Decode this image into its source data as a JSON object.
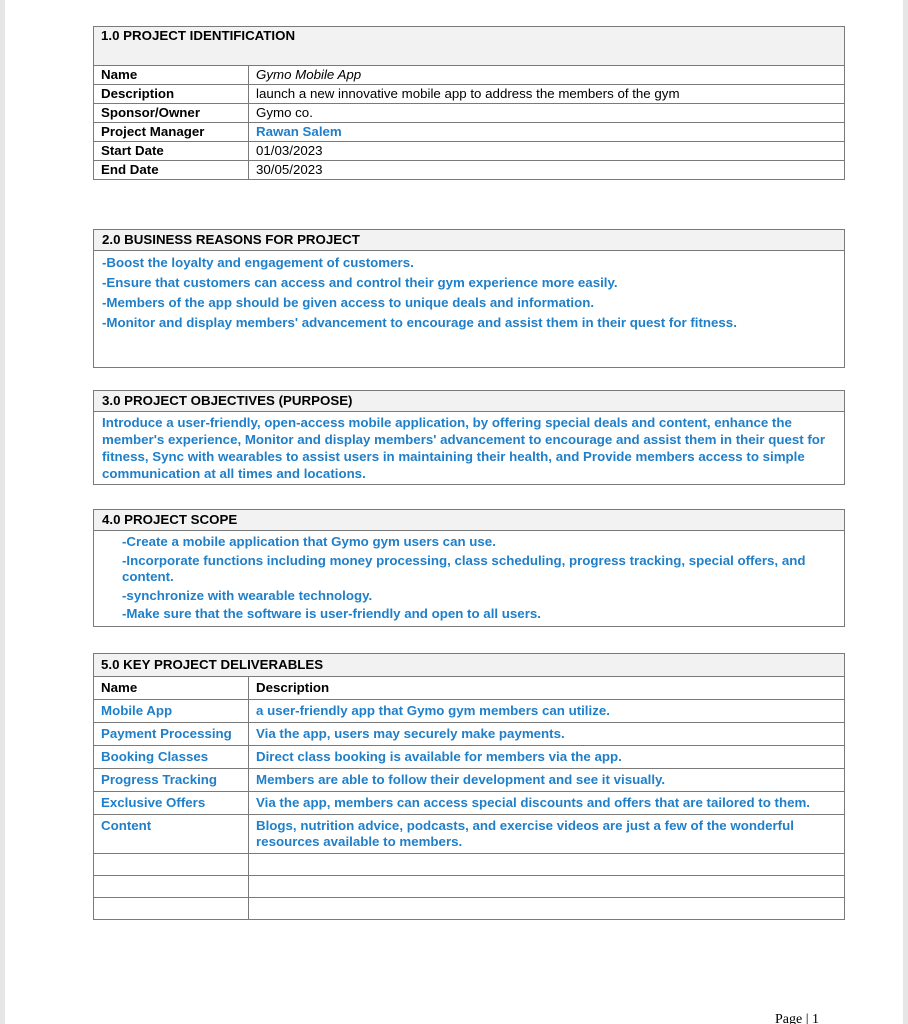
{
  "s1": {
    "title": "1.0 PROJECT IDENTIFICATION",
    "rows": [
      {
        "label": "Name",
        "value": "Gymo Mobile App"
      },
      {
        "label": "Description",
        "value": "launch a new innovative mobile app to address the members of the gym"
      },
      {
        "label": "Sponsor/Owner",
        "value": "Gymo co."
      },
      {
        "label": "Project Manager",
        "value": "Rawan Salem"
      },
      {
        "label": "Start Date",
        "value": "01/03/2023"
      },
      {
        "label": "End Date",
        "value": "30/05/2023"
      }
    ]
  },
  "s2": {
    "title": "2.0 BUSINESS REASONS FOR PROJECT",
    "lines": [
      "-Boost the loyalty and engagement of customers.",
      "-Ensure that customers can access and control their gym experience more easily.",
      "-Members of the app should be given access to unique deals and information.",
      "-Monitor and display members' advancement to encourage and assist them in their quest for fitness."
    ]
  },
  "s3": {
    "title": "3.0 PROJECT OBJECTIVES (PURPOSE)",
    "text": "Introduce a user-friendly, open-access mobile application, by offering special deals and content, enhance the member's experience, Monitor and display members' advancement to encourage and assist them in their quest for fitness, Sync with wearables to assist users in maintaining their health, and Provide members access to simple communication at all times and locations."
  },
  "s4": {
    "title": "4.0 PROJECT SCOPE",
    "lines": [
      "-Create a mobile application that Gymo gym users can use.",
      "-Incorporate functions including money processing, class scheduling, progress tracking, special offers, and content.",
      "-synchronize with wearable technology.",
      "-Make sure that the software is user-friendly and open to all users."
    ]
  },
  "s5": {
    "title": "5.0 KEY PROJECT DELIVERABLES",
    "col_name": "Name",
    "col_desc": "Description",
    "rows": [
      {
        "name": "Mobile App",
        "desc": "a user-friendly app that Gymo gym members can utilize."
      },
      {
        "name": "Payment Processing",
        "desc": "Via the app, users may securely make payments."
      },
      {
        "name": "Booking Classes",
        "desc": "Direct class booking is available for members via the app."
      },
      {
        "name": "Progress Tracking",
        "desc": "Members are able to follow their development and see it visually."
      },
      {
        "name": "Exclusive Offers",
        "desc": "Via the app, members can access special discounts and offers that are tailored to them."
      },
      {
        "name": "Content",
        "desc": "Blogs, nutrition advice, podcasts, and exercise videos are just a few of the wonderful resources available to members."
      }
    ]
  },
  "footer": "Page | 1",
  "colors": {
    "accent": "#1f7fc9",
    "header_bg": "#f2f2f2"
  }
}
